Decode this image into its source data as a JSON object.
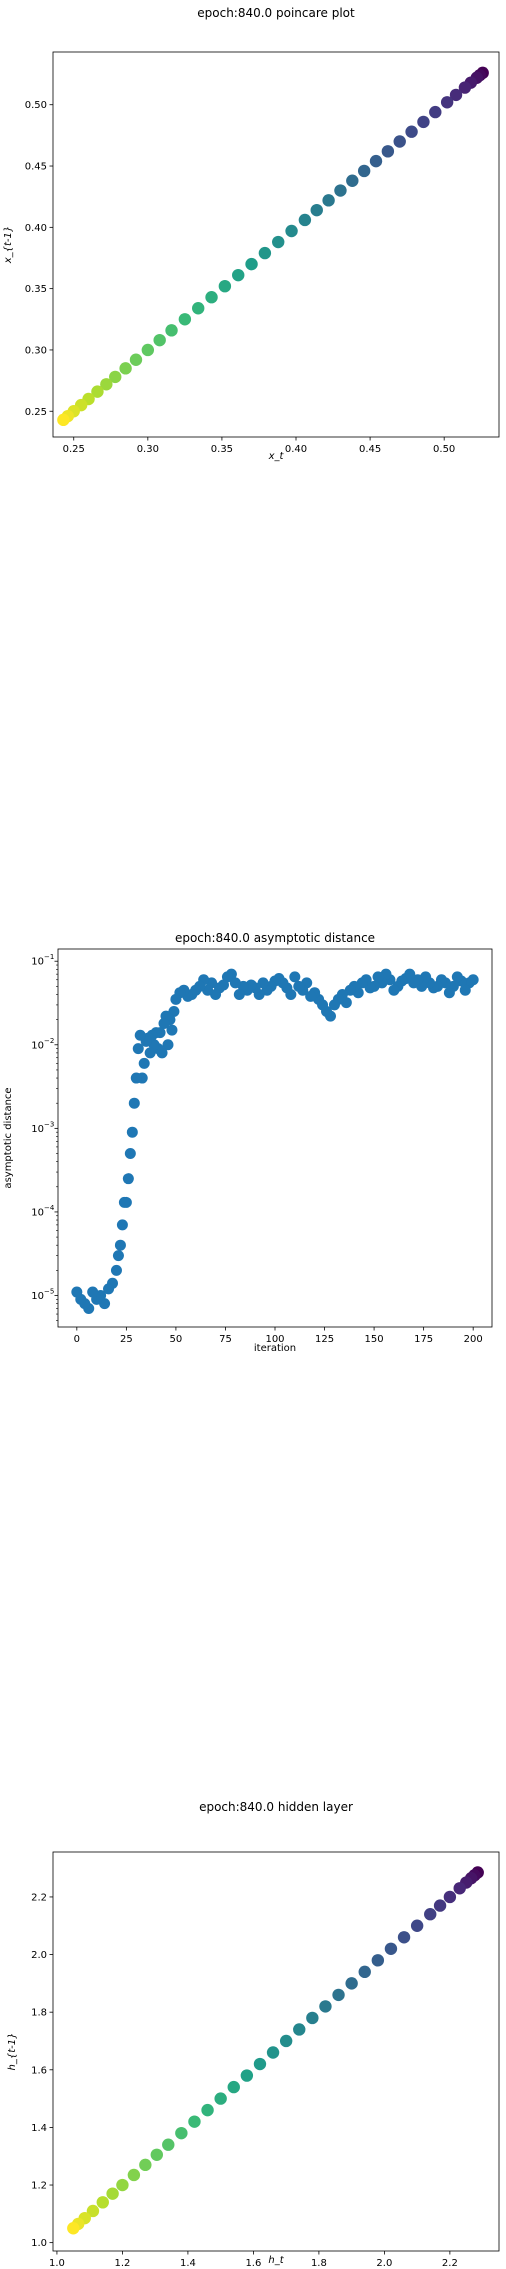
{
  "chart_data": [
    {
      "type": "scatter",
      "title": "epoch:840.0 poincare plot",
      "xlabel": "x_t",
      "ylabel": "x_{t-1}",
      "xlim": [
        0.236,
        0.537
      ],
      "ylim": [
        0.229,
        0.543
      ],
      "xticks": [
        "0.25",
        "0.30",
        "0.35",
        "0.40",
        "0.45",
        "0.50"
      ],
      "yticks": [
        "0.25",
        "0.30",
        "0.35",
        "0.40",
        "0.45",
        "0.50"
      ],
      "colormap": "viridis",
      "x": [
        0.243,
        0.246,
        0.25,
        0.255,
        0.26,
        0.266,
        0.272,
        0.278,
        0.285,
        0.292,
        0.3,
        0.308,
        0.316,
        0.325,
        0.334,
        0.343,
        0.352,
        0.361,
        0.37,
        0.379,
        0.388,
        0.397,
        0.406,
        0.414,
        0.422,
        0.43,
        0.438,
        0.446,
        0.454,
        0.462,
        0.47,
        0.478,
        0.486,
        0.494,
        0.502,
        0.508,
        0.514,
        0.518,
        0.522,
        0.524,
        0.526
      ],
      "y": [
        0.243,
        0.246,
        0.25,
        0.255,
        0.26,
        0.266,
        0.272,
        0.278,
        0.285,
        0.292,
        0.3,
        0.308,
        0.316,
        0.325,
        0.334,
        0.343,
        0.352,
        0.361,
        0.37,
        0.379,
        0.388,
        0.397,
        0.406,
        0.414,
        0.422,
        0.43,
        0.438,
        0.446,
        0.454,
        0.462,
        0.47,
        0.478,
        0.486,
        0.494,
        0.502,
        0.508,
        0.514,
        0.518,
        0.522,
        0.524,
        0.526
      ]
    },
    {
      "type": "scatter",
      "title": "epoch:840.0 asymptotic distance",
      "xlabel": "iteration",
      "ylabel": "asymptotic distance",
      "yscale": "log",
      "xlim": [
        -9.5,
        209.5
      ],
      "ylim": [
        4.2e-06,
        0.14
      ],
      "xticks": [
        0,
        25,
        50,
        75,
        100,
        125,
        150,
        175,
        200
      ],
      "yticks": [
        1e-05,
        0.0001,
        0.001,
        0.01,
        0.1
      ],
      "ytick_labels": [
        "10",
        "10",
        "10",
        "10",
        "10"
      ],
      "ytick_exponents": [
        "−5",
        "−4",
        "−3",
        "−2",
        "−1"
      ],
      "color": "#1f77b4",
      "x": [
        0,
        2,
        4,
        6,
        8,
        10,
        12,
        14,
        16,
        18,
        20,
        21,
        22,
        23,
        24,
        25,
        26,
        27,
        28,
        29,
        30,
        31,
        32,
        33,
        34,
        35,
        36,
        37,
        38,
        39,
        40,
        41,
        42,
        43,
        44,
        45,
        46,
        47,
        48,
        49,
        50,
        52,
        54,
        56,
        58,
        60,
        62,
        64,
        66,
        68,
        70,
        72,
        74,
        76,
        78,
        80,
        82,
        84,
        86,
        88,
        90,
        92,
        94,
        96,
        98,
        100,
        102,
        104,
        106,
        108,
        110,
        112,
        114,
        116,
        118,
        120,
        122,
        124,
        126,
        128,
        130,
        132,
        134,
        136,
        138,
        140,
        142,
        144,
        146,
        148,
        150,
        152,
        154,
        156,
        158,
        160,
        162,
        164,
        166,
        168,
        170,
        172,
        174,
        176,
        178,
        180,
        182,
        184,
        186,
        188,
        190,
        192,
        194,
        196,
        198,
        200
      ],
      "y": [
        1.1e-05,
        9e-06,
        8e-06,
        7e-06,
        1.1e-05,
        9e-06,
        1e-05,
        8e-06,
        1.2e-05,
        1.4e-05,
        2e-05,
        3e-05,
        4e-05,
        7e-05,
        0.00013,
        0.00013,
        0.00025,
        0.0005,
        0.0009,
        0.002,
        0.004,
        0.009,
        0.013,
        0.004,
        0.006,
        0.011,
        0.012,
        0.008,
        0.013,
        0.01,
        0.014,
        0.009,
        0.014,
        0.008,
        0.018,
        0.022,
        0.01,
        0.02,
        0.015,
        0.025,
        0.035,
        0.042,
        0.045,
        0.038,
        0.04,
        0.045,
        0.05,
        0.06,
        0.045,
        0.055,
        0.04,
        0.048,
        0.052,
        0.065,
        0.07,
        0.055,
        0.04,
        0.05,
        0.045,
        0.052,
        0.048,
        0.04,
        0.055,
        0.045,
        0.05,
        0.058,
        0.062,
        0.055,
        0.048,
        0.04,
        0.065,
        0.05,
        0.045,
        0.055,
        0.038,
        0.042,
        0.035,
        0.03,
        0.025,
        0.022,
        0.03,
        0.035,
        0.04,
        0.032,
        0.045,
        0.05,
        0.042,
        0.055,
        0.06,
        0.048,
        0.05,
        0.065,
        0.055,
        0.07,
        0.06,
        0.045,
        0.05,
        0.058,
        0.062,
        0.07,
        0.055,
        0.06,
        0.05,
        0.065,
        0.055,
        0.048,
        0.05,
        0.06,
        0.055,
        0.042,
        0.05,
        0.065,
        0.058,
        0.045,
        0.055,
        0.06
      ]
    },
    {
      "type": "scatter",
      "title": "epoch:840.0 hidden layer",
      "xlabel": "h_t",
      "ylabel": "h_{t-1}",
      "xlim": [
        0.988,
        2.35
      ],
      "ylim": [
        0.971,
        2.356
      ],
      "xticks": [
        "1.0",
        "1.2",
        "1.4",
        "1.6",
        "1.8",
        "2.0",
        "2.2"
      ],
      "yticks": [
        "1.0",
        "1.2",
        "1.4",
        "1.6",
        "1.8",
        "2.0",
        "2.2"
      ],
      "colormap": "viridis",
      "x": [
        1.05,
        1.065,
        1.085,
        1.11,
        1.14,
        1.17,
        1.2,
        1.235,
        1.27,
        1.305,
        1.34,
        1.38,
        1.42,
        1.46,
        1.5,
        1.54,
        1.58,
        1.62,
        1.66,
        1.7,
        1.74,
        1.78,
        1.82,
        1.86,
        1.9,
        1.94,
        1.98,
        2.02,
        2.06,
        2.1,
        2.14,
        2.17,
        2.2,
        2.23,
        2.25,
        2.265,
        2.275,
        2.285
      ],
      "y": [
        1.05,
        1.065,
        1.085,
        1.11,
        1.14,
        1.17,
        1.2,
        1.235,
        1.27,
        1.305,
        1.34,
        1.38,
        1.42,
        1.46,
        1.5,
        1.54,
        1.58,
        1.62,
        1.66,
        1.7,
        1.74,
        1.78,
        1.82,
        1.86,
        1.9,
        1.94,
        1.98,
        2.02,
        2.06,
        2.1,
        2.14,
        2.17,
        2.2,
        2.23,
        2.25,
        2.265,
        2.275,
        2.285
      ]
    }
  ]
}
